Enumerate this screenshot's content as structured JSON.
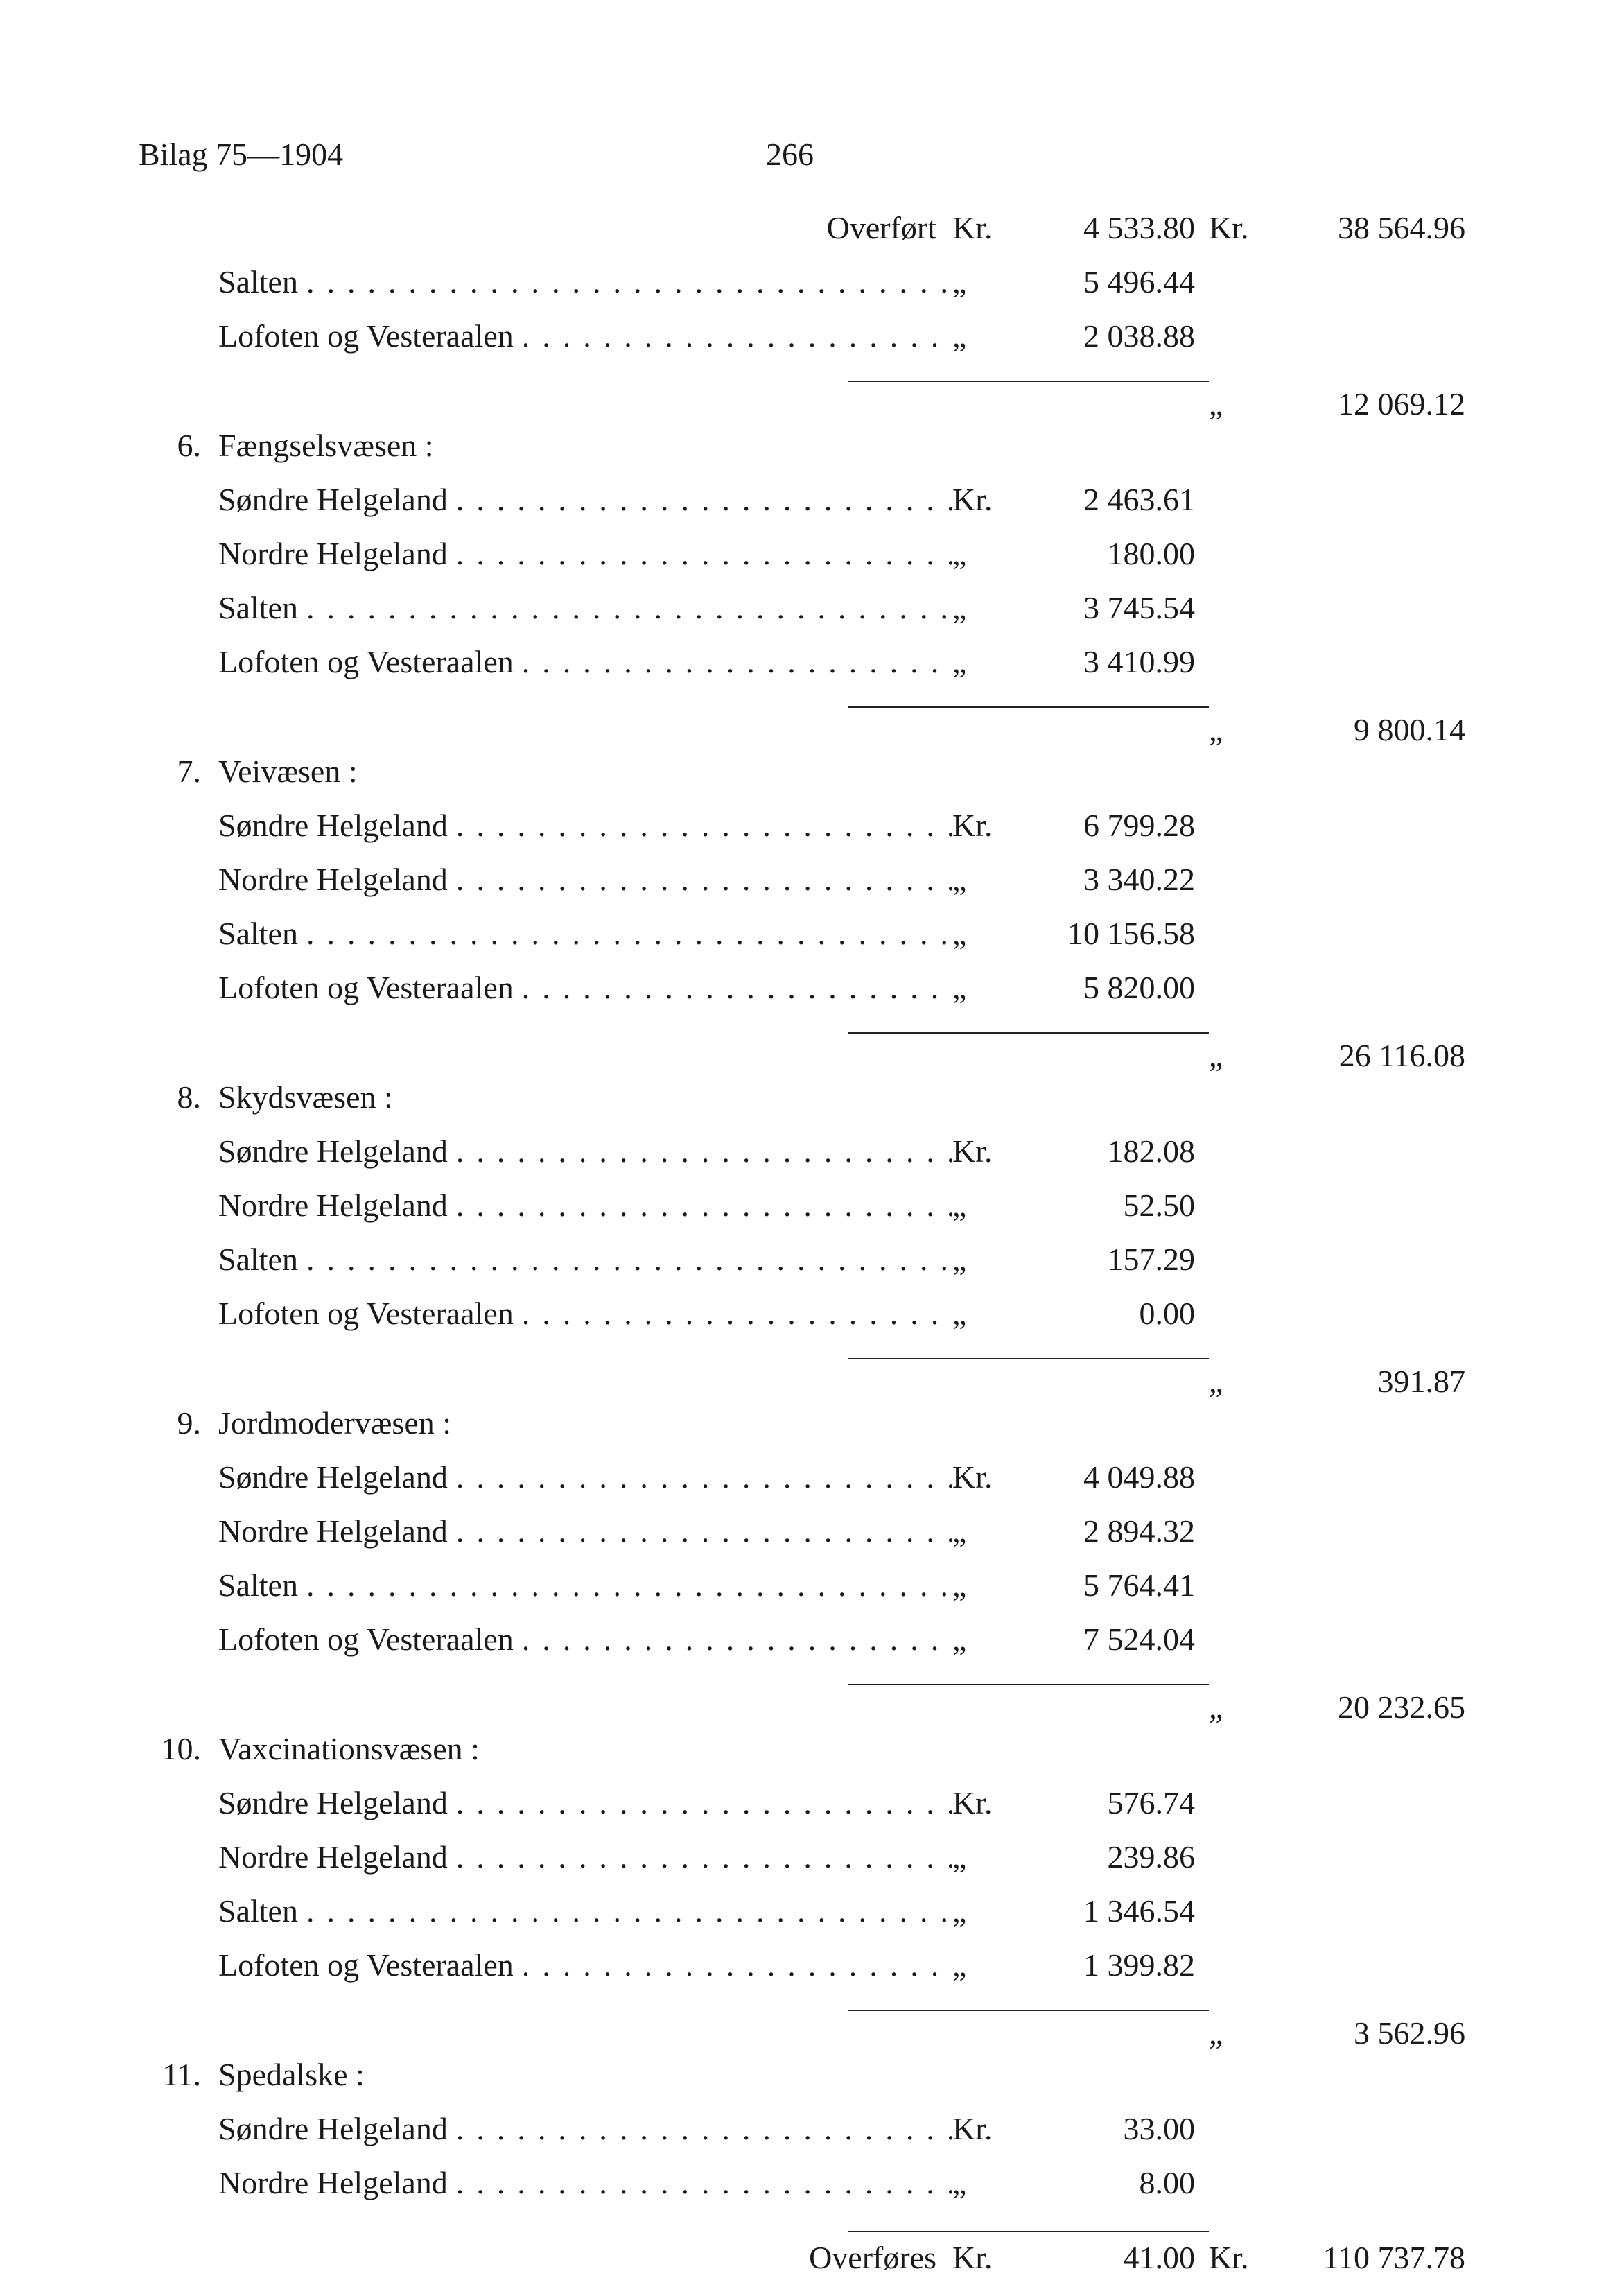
{
  "header": {
    "left": "Bilag 75—1904",
    "pageNumber": "266"
  },
  "carryOver": {
    "label": "Overført",
    "unit": "Kr.",
    "amount": "4 533.80",
    "unit2": "Kr.",
    "total": "38 564.96"
  },
  "preItems": [
    {
      "label": "Salten",
      "unit": "„",
      "amount": "5 496.44"
    },
    {
      "label": "Lofoten og Vesteraalen",
      "unit": "„",
      "amount": "2 038.88"
    }
  ],
  "preTotal": {
    "unit2": "„",
    "total": "12 069.12"
  },
  "sections": [
    {
      "num": "6.",
      "title": "Fængselsvæsen :",
      "items": [
        {
          "label": "Søndre Helgeland",
          "unit": "Kr.",
          "amount": "2 463.61"
        },
        {
          "label": "Nordre Helgeland",
          "unit": "„",
          "amount": "180.00"
        },
        {
          "label": "Salten",
          "unit": "„",
          "amount": "3 745.54"
        },
        {
          "label": "Lofoten og Vesteraalen",
          "unit": "„",
          "amount": "3 410.99"
        }
      ],
      "subtotal": {
        "unit2": "„",
        "total": "9 800.14"
      }
    },
    {
      "num": "7.",
      "title": "Veivæsen :",
      "items": [
        {
          "label": "Søndre Helgeland",
          "unit": "Kr.",
          "amount": "6 799.28"
        },
        {
          "label": "Nordre Helgeland",
          "unit": "„",
          "amount": "3 340.22"
        },
        {
          "label": "Salten",
          "unit": "„",
          "amount": "10 156.58"
        },
        {
          "label": "Lofoten og Vesteraalen",
          "unit": "„",
          "amount": "5 820.00"
        }
      ],
      "subtotal": {
        "unit2": "„",
        "total": "26 116.08"
      }
    },
    {
      "num": "8.",
      "title": "Skydsvæsen :",
      "items": [
        {
          "label": "Søndre Helgeland",
          "unit": "Kr.",
          "amount": "182.08"
        },
        {
          "label": "Nordre Helgeland",
          "unit": "„",
          "amount": "52.50"
        },
        {
          "label": "Salten",
          "unit": "„",
          "amount": "157.29"
        },
        {
          "label": "Lofoten og Vesteraalen",
          "unit": "„",
          "amount": "0.00"
        }
      ],
      "subtotal": {
        "unit2": "„",
        "total": "391.87"
      }
    },
    {
      "num": "9.",
      "title": "Jordmodervæsen :",
      "items": [
        {
          "label": "Søndre Helgeland",
          "unit": "Kr.",
          "amount": "4 049.88"
        },
        {
          "label": "Nordre Helgeland",
          "unit": "„",
          "amount": "2 894.32"
        },
        {
          "label": "Salten",
          "unit": "„",
          "amount": "5 764.41"
        },
        {
          "label": "Lofoten og Vesteraalen",
          "unit": "„",
          "amount": "7 524.04"
        }
      ],
      "subtotal": {
        "unit2": "„",
        "total": "20 232.65"
      }
    },
    {
      "num": "10.",
      "title": "Vaxcinationsvæsen :",
      "items": [
        {
          "label": "Søndre Helgeland",
          "unit": "Kr.",
          "amount": "576.74"
        },
        {
          "label": "Nordre Helgeland",
          "unit": "„",
          "amount": "239.86"
        },
        {
          "label": "Salten",
          "unit": "„",
          "amount": "1 346.54"
        },
        {
          "label": "Lofoten og Vesteraalen",
          "unit": "„",
          "amount": "1 399.82"
        }
      ],
      "subtotal": {
        "unit2": "„",
        "total": "3 562.96"
      }
    },
    {
      "num": "11.",
      "title": "Spedalske :",
      "items": [
        {
          "label": "Søndre Helgeland",
          "unit": "Kr.",
          "amount": "33.00"
        },
        {
          "label": "Nordre Helgeland",
          "unit": "„",
          "amount": "8.00"
        }
      ],
      "subtotal": null
    }
  ],
  "carryForward": {
    "label": "Overføres",
    "unit": "Kr.",
    "amount": "41.00",
    "unit2": "Kr.",
    "total": "110 737.78"
  },
  "dotsPattern": "...................................."
}
